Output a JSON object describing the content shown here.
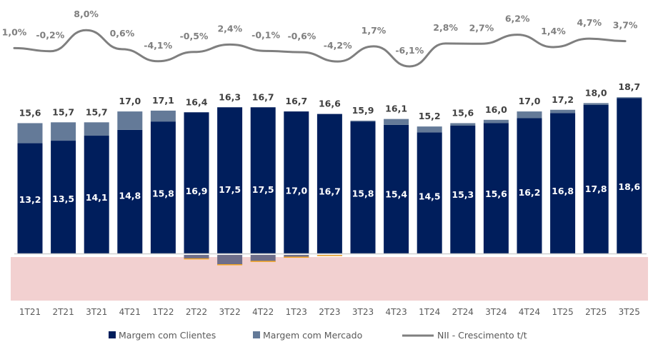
{
  "chart_data": {
    "type": "bar",
    "stacked": true,
    "title": "",
    "xlabel": "",
    "ylabel": "",
    "categories": [
      "1T21",
      "2T21",
      "3T21",
      "4T21",
      "1T22",
      "2T22",
      "3T22",
      "4T22",
      "1T23",
      "2T23",
      "3T23",
      "4T23",
      "1T24",
      "2T24",
      "3T24",
      "4T24",
      "1T25",
      "2T25",
      "3T25"
    ],
    "series": [
      {
        "name": "Margem com Clientes",
        "color": "#001e5c",
        "values": [
          13.2,
          13.5,
          14.1,
          14.8,
          15.8,
          16.9,
          17.5,
          17.5,
          17.0,
          16.7,
          15.8,
          15.4,
          14.5,
          15.3,
          15.6,
          16.2,
          16.8,
          17.8,
          18.6
        ]
      },
      {
        "name": "Margem com Mercado",
        "color": "#647a98",
        "values": [
          2.4,
          2.2,
          1.6,
          2.2,
          1.3,
          -0.5,
          -1.2,
          -0.8,
          -0.3,
          -0.1,
          0.1,
          0.7,
          0.7,
          0.3,
          0.4,
          0.8,
          0.4,
          0.2,
          0.1
        ]
      }
    ],
    "totals": [
      "15,6",
      "15,7",
      "15,7",
      "17,0",
      "17,1",
      "16,4",
      "16,3",
      "16,7",
      "16,7",
      "16,6",
      "15,9",
      "16,1",
      "15,2",
      "15,6",
      "16,0",
      "17,0",
      "17,2",
      "18,0",
      "18,7"
    ],
    "client_labels": [
      "13,2",
      "13,5",
      "14,1",
      "14,8",
      "15,8",
      "16,9",
      "17,5",
      "17,5",
      "17,0",
      "16,7",
      "15,8",
      "15,4",
      "14,5",
      "15,3",
      "15,6",
      "16,2",
      "16,8",
      "17,8",
      "18,6"
    ],
    "line_series": {
      "name": "NII - Crescimento t/t",
      "color": "#7f7f7f",
      "values": [
        1.0,
        -0.2,
        8.0,
        0.6,
        -4.1,
        -0.5,
        2.4,
        -0.1,
        -0.6,
        -4.2,
        1.7,
        -6.1,
        2.8,
        2.7,
        6.2,
        1.4,
        4.7,
        3.7
      ],
      "labels": [
        "1,0%",
        "-0,2%",
        "8,0%",
        "0,6%",
        "-4,1%",
        "-0,5%",
        "2,4%",
        "-0,1%",
        "-0,6%",
        "-4,2%",
        "1,7%",
        "-6,1%",
        "2,8%",
        "2,7%",
        "6,2%",
        "1,4%",
        "4,7%",
        "3,7%"
      ]
    },
    "legend": {
      "position": "bottom",
      "items": [
        {
          "label": "Margem com Clientes",
          "kind": "square",
          "color": "#001e5c"
        },
        {
          "label": "Margem com Mercado",
          "kind": "square",
          "color": "#647a98"
        },
        {
          "label": "NII - Crescimento t/t",
          "kind": "line",
          "color": "#7f7f7f"
        }
      ]
    },
    "negative_zone_color": "#f2d0d0",
    "accent_edge_color": "#f5a623",
    "grid": false
  }
}
